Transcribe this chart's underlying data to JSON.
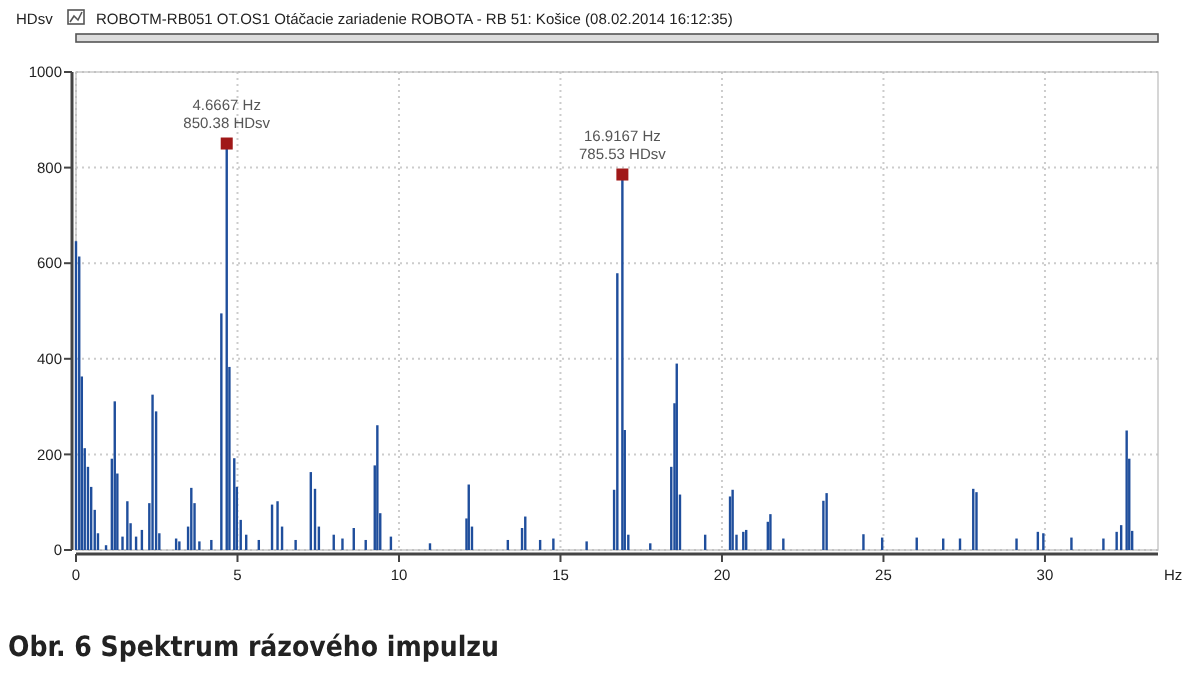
{
  "chart_data": {
    "type": "bar",
    "title": "ROBOTM-RB051 OT.OS1  Otáčacie zariadenie ROBOTA  - RB 51: Košice (08.02.2014 16:12:35)",
    "xlabel": "Hz",
    "ylabel": "HDsv",
    "xlim": [
      0,
      33.5
    ],
    "xticks": [
      0,
      5,
      10,
      15,
      20,
      25,
      30
    ],
    "ylim": [
      0,
      1000
    ],
    "yticks": [
      0,
      200,
      400,
      600,
      800,
      1000
    ],
    "grid": true,
    "series": [
      {
        "color": "#1f4e9c",
        "x": [
          0.0,
          0.1,
          0.18,
          0.27,
          0.37,
          0.47,
          0.58,
          0.68,
          0.93,
          1.11,
          1.2,
          1.28,
          1.44,
          1.59,
          1.69,
          1.86,
          2.04,
          2.27,
          2.37,
          2.48,
          2.58,
          3.1,
          3.2,
          3.47,
          3.57,
          3.67,
          3.82,
          4.19,
          4.5,
          4.6667,
          4.75,
          4.9,
          4.98,
          5.1,
          5.27,
          5.66,
          6.07,
          6.24,
          6.38,
          6.8,
          7.27,
          7.4,
          7.52,
          7.98,
          8.25,
          8.6,
          8.97,
          9.25,
          9.33,
          9.42,
          9.75,
          10.96,
          12.09,
          12.16,
          12.26,
          13.37,
          13.81,
          13.91,
          14.37,
          14.78,
          15.81,
          16.66,
          16.76,
          16.9167,
          16.99,
          17.1,
          17.78,
          18.43,
          18.53,
          18.6,
          18.7,
          19.48,
          20.25,
          20.33,
          20.45,
          20.66,
          20.75,
          21.42,
          21.5,
          21.9,
          23.14,
          23.24,
          24.38,
          24.96,
          26.03,
          26.85,
          27.37,
          27.78,
          27.88,
          29.12,
          29.78,
          29.95,
          30.82,
          31.81,
          32.22,
          32.36,
          32.53,
          32.61,
          32.7
        ],
        "values": [
          646,
          614,
          363,
          213,
          174,
          132,
          84,
          35,
          10,
          191,
          311,
          160,
          28,
          102,
          56,
          28,
          42,
          98,
          325,
          290,
          35,
          24,
          18,
          49,
          130,
          98,
          18,
          21,
          495,
          850.38,
          383,
          192,
          132,
          63,
          32,
          21,
          95,
          102,
          49,
          21,
          163,
          128,
          49,
          32,
          24,
          46,
          21,
          177,
          261,
          77,
          28,
          14,
          66,
          137,
          49,
          21,
          46,
          70,
          21,
          24,
          18,
          126,
          579,
          785.53,
          251,
          32,
          14,
          174,
          307,
          390,
          116,
          32,
          112,
          126,
          32,
          38,
          42,
          59,
          75,
          24,
          103,
          119,
          33,
          26,
          26,
          24,
          24,
          128,
          121,
          24,
          38,
          35,
          26,
          24,
          38,
          52,
          250,
          191,
          40
        ]
      },
      {
        "type": "scatter",
        "color": "#a01818",
        "marker": "square",
        "x": [
          4.6667,
          16.9167
        ],
        "values": [
          850.38,
          785.53
        ]
      }
    ],
    "annotations": [
      {
        "text": "4.6667 Hz\n850.38 HDsv",
        "x": 4.6667,
        "y": 850.38
      },
      {
        "text": "16.9167 Hz\n785.53 HDsv",
        "x": 16.9167,
        "y": 785.53
      },
      "Obr. 6 Spektrum rázového impulzu"
    ]
  }
}
